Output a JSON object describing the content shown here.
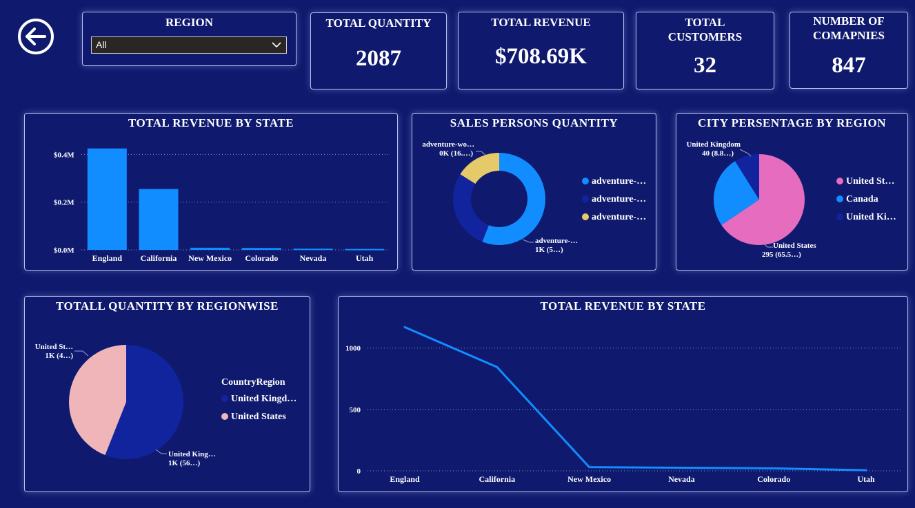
{
  "filter": {
    "label": "REGION",
    "selected": "All"
  },
  "kpis": [
    {
      "title": "TOTAL QUANTITY",
      "value": "2087"
    },
    {
      "title": "TOTAL REVENUE",
      "value": "$708.69K"
    },
    {
      "title": "TOTAL CUSTOMERS",
      "value": "32"
    },
    {
      "title": "NUMBER OF COMAPNIES",
      "value": "847"
    }
  ],
  "colors": {
    "background": "#0f1a6e",
    "bright_blue": "#118dff",
    "dark_navy": "#12239e",
    "gold": "#e6c968",
    "pink": "#e66cbf",
    "light_pink": "#efb5b9"
  },
  "titles": {
    "bar_state": "TOTAL REVENUE BY STATE",
    "sales_persons": "SALES PERSONS QUANTITY",
    "city_pct": "CITY PERSENTAGE BY REGION",
    "qty_region": "TOTALL QUANTITY BY REGIONWISE",
    "line_state": "TOTAL REVENUE BY STATE"
  },
  "legends": {
    "sales_persons": [
      "adventure-…",
      "adventure-…",
      "adventure-…"
    ],
    "city_pct": [
      "United St…",
      "Canada",
      "United Ki…"
    ],
    "qty_region_title": "CountryRegion",
    "qty_region": [
      "United Kingd…",
      "United States"
    ]
  },
  "labels": {
    "sp_gold_1": "adventure-wo…",
    "sp_gold_2": "0K (16.…)",
    "sp_blue_1": "adventure-…",
    "sp_blue_2": "1K (5…)",
    "city_uk_1": "United Kingdom",
    "city_uk_2": "40 (8.8…)",
    "city_us_1": "United States",
    "city_us_2": "295 (65.5…)",
    "qr_us_1": "United St…",
    "qr_us_2": "1K (4…)",
    "qr_uk_1": "United King…",
    "qr_uk_2": "1K (56…)"
  },
  "chart_data": [
    {
      "type": "bar",
      "title": "TOTAL REVENUE BY STATE",
      "categories": [
        "England",
        "California",
        "New Mexico",
        "Colorado",
        "Nevada",
        "Utah"
      ],
      "values": [
        0.425,
        0.255,
        0.009,
        0.008,
        0.005,
        0.004
      ],
      "ytick_labels": [
        "$0.0M",
        "$0.2M",
        "$0.4M"
      ],
      "yticks": [
        0,
        0.2,
        0.4
      ],
      "ylim": [
        0,
        0.45
      ],
      "grid": true
    },
    {
      "type": "pie",
      "donut": true,
      "title": "SALES PERSONS QUANTITY",
      "categories": [
        "adventure-…",
        "adventure-…",
        "adventure-…"
      ],
      "values": [
        56,
        28,
        16
      ],
      "colors": [
        "#118dff",
        "#12239e",
        "#e6c968"
      ]
    },
    {
      "type": "pie",
      "title": "CITY PERSENTAGE BY REGION",
      "categories": [
        "United States",
        "Canada",
        "United Kingdom"
      ],
      "values": [
        295,
        115,
        40
      ],
      "colors": [
        "#e66cbf",
        "#118dff",
        "#12239e"
      ]
    },
    {
      "type": "pie",
      "title": "TOTALL QUANTITY BY REGIONWISE",
      "categories": [
        "United Kingdom",
        "United States"
      ],
      "values": [
        56,
        44
      ],
      "colors": [
        "#12239e",
        "#efb5b9"
      ]
    },
    {
      "type": "line",
      "title": "TOTAL REVENUE BY STATE",
      "categories": [
        "England",
        "California",
        "New Mexico",
        "Nevada",
        "Colorado",
        "Utah"
      ],
      "values": [
        1170,
        845,
        30,
        25,
        20,
        5
      ],
      "yticks": [
        0,
        500,
        1000
      ],
      "ylim": [
        0,
        1250
      ],
      "grid": true
    }
  ]
}
